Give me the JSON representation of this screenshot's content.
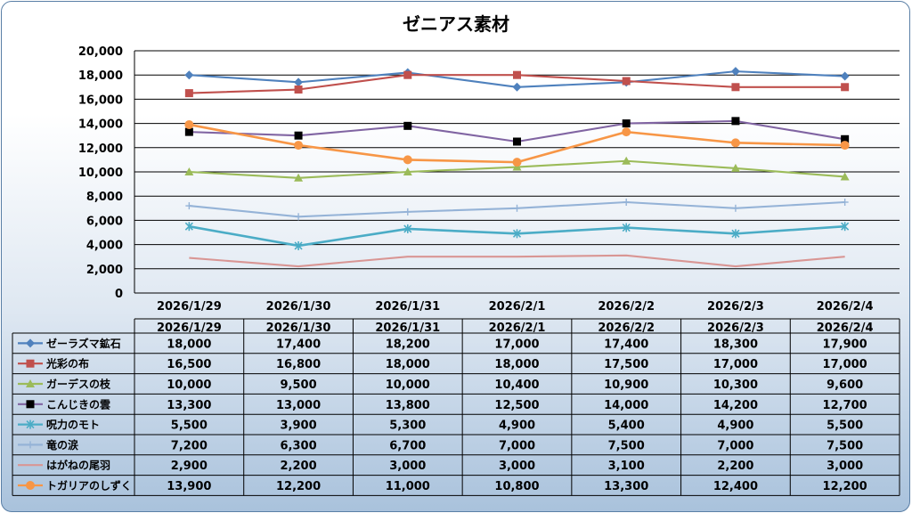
{
  "chart_data": {
    "type": "line",
    "title": "ゼニアス素材",
    "categories": [
      "2026/1/29",
      "2026/1/30",
      "2026/1/31",
      "2026/2/1",
      "2026/2/2",
      "2026/2/3",
      "2026/2/4"
    ],
    "ylim": [
      0,
      20000
    ],
    "yticks": [
      0,
      2000,
      4000,
      6000,
      8000,
      10000,
      12000,
      14000,
      16000,
      18000,
      20000
    ],
    "ytick_labels": [
      "0",
      "2,000",
      "4,000",
      "6,000",
      "8,000",
      "10,000",
      "12,000",
      "14,000",
      "16,000",
      "18,000",
      "20,000"
    ],
    "grid": true,
    "legend": "data-table",
    "series": [
      {
        "name": "ゼーラズマ鉱石",
        "color": "#4f81bd",
        "marker": "diamond",
        "values": [
          18000,
          17400,
          18200,
          17000,
          17400,
          18300,
          17900
        ],
        "labels": [
          "18,000",
          "17,400",
          "18,200",
          "17,000",
          "17,400",
          "18,300",
          "17,900"
        ]
      },
      {
        "name": "光彩の布",
        "color": "#c0504d",
        "marker": "square",
        "values": [
          16500,
          16800,
          18000,
          18000,
          17500,
          17000,
          17000
        ],
        "labels": [
          "16,500",
          "16,800",
          "18,000",
          "18,000",
          "17,500",
          "17,000",
          "17,000"
        ]
      },
      {
        "name": "ガーデスの枝",
        "color": "#9bbb59",
        "marker": "triangle",
        "values": [
          10000,
          9500,
          10000,
          10400,
          10900,
          10300,
          9600
        ],
        "labels": [
          "10,000",
          "9,500",
          "10,000",
          "10,400",
          "10,900",
          "10,300",
          "9,600"
        ]
      },
      {
        "name": "こんじきの雲",
        "color": "#8064a2",
        "marker": "blacksquare",
        "values": [
          13300,
          13000,
          13800,
          12500,
          14000,
          14200,
          12700
        ],
        "labels": [
          "13,300",
          "13,000",
          "13,800",
          "12,500",
          "14,000",
          "14,200",
          "12,700"
        ]
      },
      {
        "name": "呪力のモト",
        "color": "#4bacc6",
        "marker": "star",
        "values": [
          5500,
          3900,
          5300,
          4900,
          5400,
          4900,
          5500
        ],
        "labels": [
          "5,500",
          "3,900",
          "5,300",
          "4,900",
          "5,400",
          "4,900",
          "5,500"
        ]
      },
      {
        "name": "竜の涙",
        "color": "#95b3d7",
        "marker": "plus",
        "values": [
          7200,
          6300,
          6700,
          7000,
          7500,
          7000,
          7500
        ],
        "labels": [
          "7,200",
          "6,300",
          "6,700",
          "7,000",
          "7,500",
          "7,000",
          "7,500"
        ]
      },
      {
        "name": "はがねの尾羽",
        "color": "#d99694",
        "marker": "none",
        "values": [
          2900,
          2200,
          3000,
          3000,
          3100,
          2200,
          3000
        ],
        "labels": [
          "2,900",
          "2,200",
          "3,000",
          "3,000",
          "3,100",
          "2,200",
          "3,000"
        ]
      },
      {
        "name": "トガリアのしずく",
        "color": "#f79646",
        "marker": "circle",
        "values": [
          13900,
          12200,
          11000,
          10800,
          13300,
          12400,
          12200
        ],
        "labels": [
          "13,900",
          "12,200",
          "11,000",
          "10,800",
          "13,300",
          "12,400",
          "12,200"
        ]
      }
    ]
  }
}
